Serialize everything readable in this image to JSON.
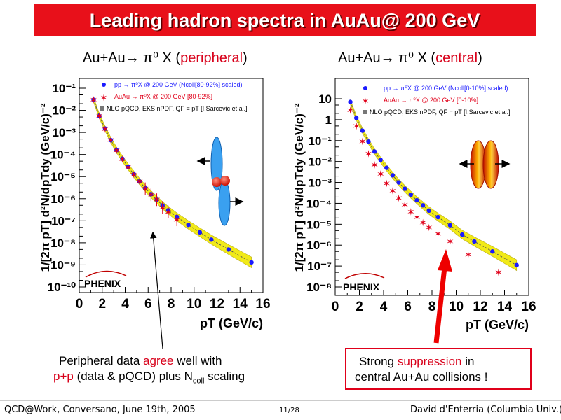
{
  "title": "Leading hadron spectra in AuAu@ 200 GeV",
  "panels": [
    {
      "subtitle": {
        "reaction": "Au+Au→ π⁰ X (",
        "tag": "peripheral",
        "close": ")"
      },
      "xlabel": "pT (GeV/c)",
      "ylabel": "1/[2π pT] d²N/dpTdy (GeV/c)⁻²",
      "legend": [
        "pp → π⁰X @ 200 GeV (Ncoll[80-92%] scaled)",
        "AuAu → π⁰X @ 200 GeV [80-92%]",
        "NLO pQCD, EKS nPDF, QF = pT [I.Sarcevic et al.]"
      ],
      "logo": "PHENIX"
    },
    {
      "subtitle": {
        "reaction": "Au+Au→ π⁰ X (",
        "tag": "central",
        "close": ")"
      },
      "xlabel": "pT (GeV/c)",
      "ylabel": "1/[2π pT] d²N/dpTdy (GeV/c)⁻²",
      "legend": [
        "pp → π⁰X @ 200 GeV (Ncoll[0-10%] scaled)",
        "AuAu → π⁰X @ 200 GeV [0-10%]",
        "NLO pQCD, EKS nPDF, QF = pT [I.Sarcevic et al.]"
      ],
      "logo": "PHENIX"
    }
  ],
  "notes": {
    "left_line1_a": "Peripheral data ",
    "left_line1_b": "agree",
    "left_line1_c": " well with",
    "left_line2_a": "p+p",
    "left_line2_b": " (data & pQCD) plus N",
    "left_line2_sub": "coll",
    "left_line2_c": " scaling",
    "right_line1_a": "Strong ",
    "right_line1_b": "suppression",
    "right_line1_c": " in",
    "right_line2": "central Au+Au collisions !"
  },
  "footer": {
    "left": "QCD@Work, Conversano, June 19th, 2005",
    "center": "11/28",
    "right": "David d'Enterria (Columbia Univ.)"
  },
  "colors": {
    "title_bg": "#e8101a",
    "pp": "#1a1aff",
    "auau": "#e0001a",
    "band": "#f0e800",
    "highlight": "#d8001a"
  },
  "chart_data": [
    {
      "type": "scatter",
      "title": "Au+Au→ π⁰ X (peripheral)",
      "xlabel": "pT (GeV/c)",
      "ylabel": "1/[2π pT] d²N/dpTdy (GeV/c)⁻²",
      "xlim": [
        0,
        16
      ],
      "ylim_exp": [
        -10,
        -1
      ],
      "yscale": "log",
      "xticks": [
        0,
        2,
        4,
        6,
        8,
        10,
        12,
        14,
        16
      ],
      "yticks": [
        "10⁻¹⁰",
        "10⁻⁹",
        "10⁻⁸",
        "10⁻⁷",
        "10⁻⁶",
        "10⁻⁵",
        "10⁻⁴",
        "10⁻³",
        "10⁻²",
        "10⁻¹"
      ],
      "series": [
        {
          "name": "pp → π⁰X @ 200 GeV (Ncoll[80-92%] scaled)",
          "marker": "circle",
          "x": [
            1.25,
            1.75,
            2.25,
            2.75,
            3.25,
            3.75,
            4.25,
            4.75,
            5.25,
            5.75,
            6.25,
            6.75,
            7.25,
            7.75,
            8.5,
            9.5,
            10.5,
            11.5,
            13,
            15
          ],
          "y": [
            0.03,
            0.0055,
            0.0015,
            0.00045,
            0.00016,
            6.5e-05,
            2.8e-05,
            1.3e-05,
            6e-06,
            3e-06,
            1.6e-06,
            9e-07,
            5e-07,
            3e-07,
            1.5e-07,
            6.5e-08,
            3e-08,
            1.4e-08,
            5e-09,
            1.3e-09
          ]
        },
        {
          "name": "AuAu → π⁰X @ 200 GeV [80-92%]",
          "marker": "star",
          "x": [
            1.25,
            1.75,
            2.25,
            2.75,
            3.25,
            3.75,
            4.25,
            4.75,
            5.25,
            5.75,
            6.25,
            6.75,
            7.25,
            7.75,
            8.5
          ],
          "y": [
            0.03,
            0.0055,
            0.0014,
            0.00045,
            0.00015,
            6e-05,
            2.6e-05,
            1.2e-05,
            6e-06,
            2.8e-06,
            1.5e-06,
            9e-07,
            4e-07,
            2.5e-07,
            1.1e-07
          ]
        }
      ]
    },
    {
      "type": "scatter",
      "title": "Au+Au→ π⁰ X (central)",
      "xlabel": "pT (GeV/c)",
      "ylabel": "1/[2π pT] d²N/dpTdy (GeV/c)⁻²",
      "xlim": [
        0,
        16
      ],
      "ylim_exp": [
        -8,
        1
      ],
      "yscale": "log",
      "xticks": [
        0,
        2,
        4,
        6,
        8,
        10,
        12,
        14,
        16
      ],
      "yticks": [
        "10⁻⁸",
        "10⁻⁷",
        "10⁻⁶",
        "10⁻⁵",
        "10⁻⁴",
        "10⁻³",
        "10⁻²",
        "10⁻¹",
        "1",
        "10"
      ],
      "series": [
        {
          "name": "pp → π⁰X @ 200 GeV (Ncoll[0-10%] scaled)",
          "marker": "circle",
          "x": [
            1.25,
            1.75,
            2.25,
            2.75,
            3.25,
            3.75,
            4.25,
            4.75,
            5.25,
            5.75,
            6.25,
            6.75,
            7.25,
            7.75,
            8.5,
            9.5,
            10.5,
            11.5,
            13,
            15
          ],
          "y": [
            7,
            1.2,
            0.3,
            0.09,
            0.03,
            0.012,
            0.005,
            0.0022,
            0.001,
            0.0005,
            0.00026,
            0.00014,
            8e-05,
            4.5e-05,
            2.2e-05,
            9e-06,
            3.2e-06,
            1.5e-06,
            5e-07,
            1.1e-07
          ]
        },
        {
          "name": "AuAu → π⁰X @ 200 GeV [0-10%]",
          "marker": "star",
          "x": [
            1.25,
            1.75,
            2.25,
            2.75,
            3.25,
            3.75,
            4.25,
            4.75,
            5.25,
            5.75,
            6.25,
            6.75,
            7.25,
            7.75,
            8.5,
            9.5,
            11,
            13.5
          ],
          "y": [
            2.8,
            0.5,
            0.09,
            0.024,
            0.007,
            0.0025,
            0.0009,
            0.0004,
            0.00018,
            8.5e-05,
            4e-05,
            2.1e-05,
            1.2e-05,
            7e-06,
            3.5e-06,
            1.5e-06,
            3.5e-07,
            5e-08
          ]
        }
      ]
    }
  ]
}
